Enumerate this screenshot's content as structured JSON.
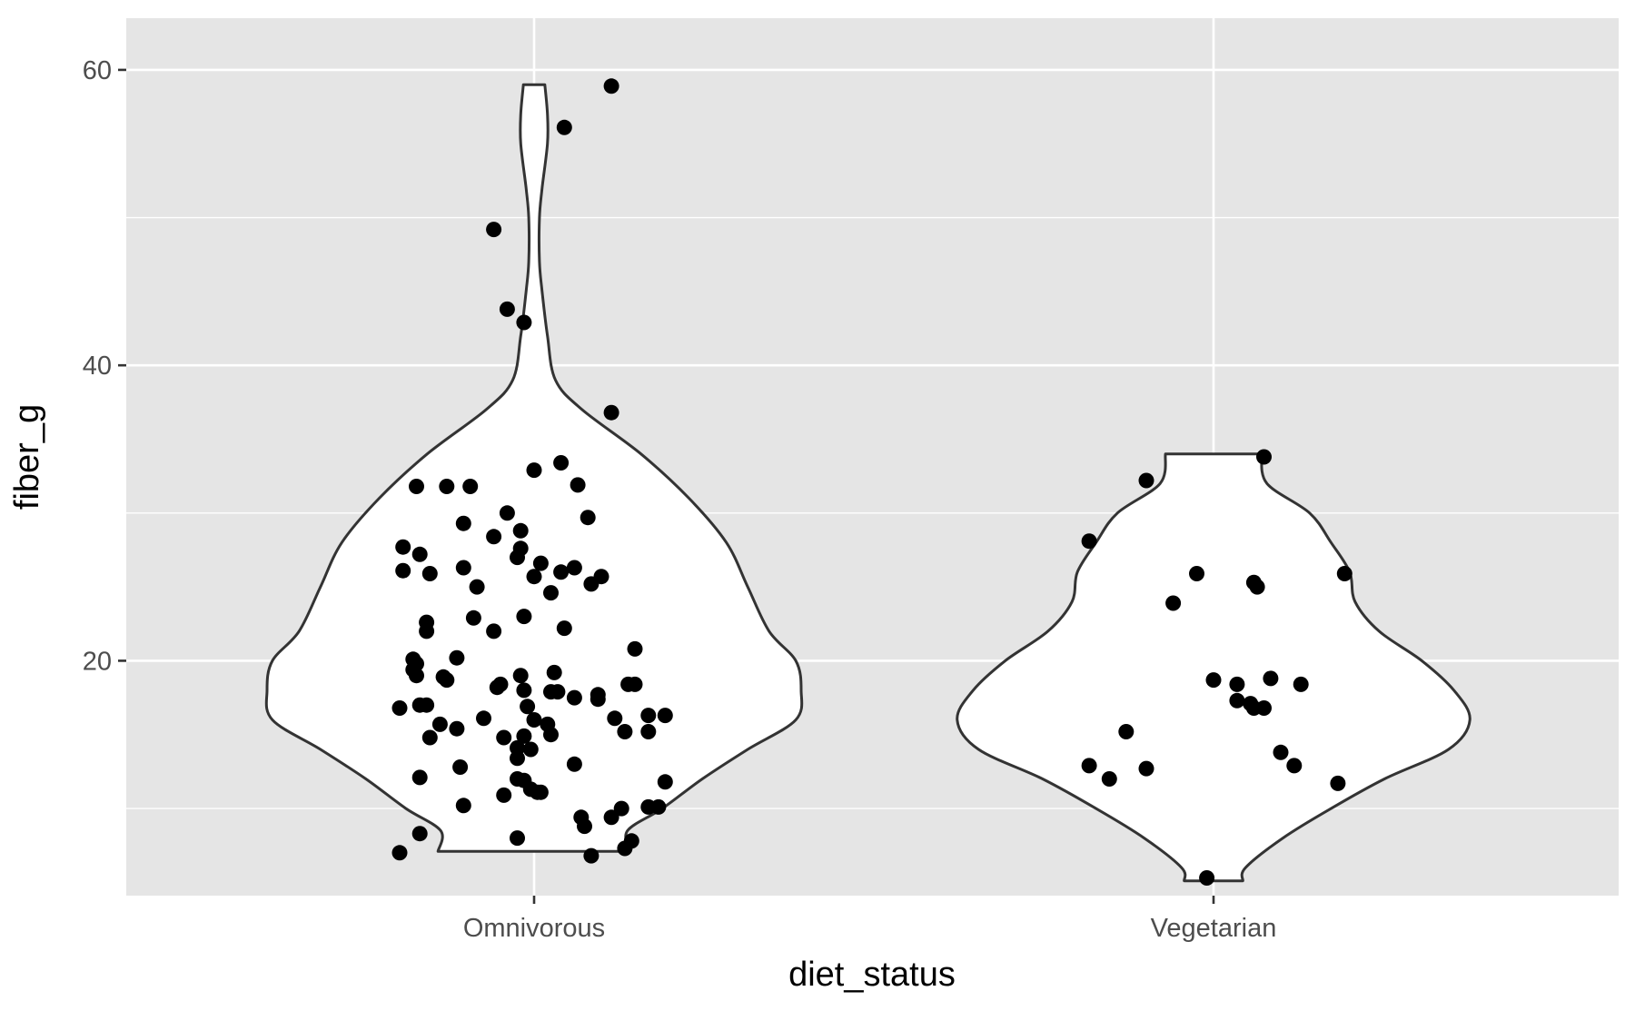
{
  "chart_data": {
    "type": "violin",
    "xlabel": "diet_status",
    "ylabel": "fiber_g",
    "categories": [
      "Omnivorous",
      "Vegetarian"
    ],
    "ylim": [
      4.1,
      63.5
    ],
    "yticks": [
      20,
      40,
      60
    ],
    "y_minor_gridlines": [
      10,
      30,
      50
    ],
    "grid": true,
    "legend": "none",
    "colors": {
      "panel_background": "#e5e5e5",
      "gridline": "#ffffff",
      "violin_fill": "#ffffff",
      "violin_outline": "#333333",
      "point": "#000000",
      "tick_label": "#4d4d4d",
      "axis_title": "#000000"
    },
    "violins": [
      {
        "category": "Omnivorous",
        "y_range": [
          7.1,
          59.0
        ],
        "density_profile": [
          [
            59.0,
            0.04
          ],
          [
            57.0,
            0.05
          ],
          [
            55.0,
            0.05
          ],
          [
            52.0,
            0.03
          ],
          [
            50.0,
            0.02
          ],
          [
            47.0,
            0.02
          ],
          [
            45.0,
            0.03
          ],
          [
            42.0,
            0.05
          ],
          [
            39.0,
            0.08
          ],
          [
            37.0,
            0.18
          ],
          [
            34.0,
            0.4
          ],
          [
            31.0,
            0.58
          ],
          [
            28.0,
            0.72
          ],
          [
            25.0,
            0.8
          ],
          [
            22.0,
            0.88
          ],
          [
            20.0,
            0.98
          ],
          [
            18.0,
            1.0
          ],
          [
            16.0,
            0.98
          ],
          [
            14.0,
            0.8
          ],
          [
            12.0,
            0.63
          ],
          [
            10.0,
            0.48
          ],
          [
            8.5,
            0.35
          ],
          [
            7.1,
            0.36
          ]
        ],
        "points": [
          [
            -0.4,
            7.0
          ],
          [
            -0.34,
            8.3
          ],
          [
            -0.34,
            12.1
          ],
          [
            -0.4,
            16.8
          ],
          [
            -0.34,
            17.0
          ],
          [
            -0.32,
            17.0
          ],
          [
            -0.31,
            14.8
          ],
          [
            -0.28,
            15.7
          ],
          [
            -0.27,
            18.9
          ],
          [
            -0.26,
            18.7
          ],
          [
            -0.35,
            19.0
          ],
          [
            -0.36,
            19.4
          ],
          [
            -0.35,
            19.8
          ],
          [
            -0.36,
            20.1
          ],
          [
            -0.32,
            22.0
          ],
          [
            -0.32,
            22.6
          ],
          [
            -0.31,
            25.9
          ],
          [
            -0.39,
            26.1
          ],
          [
            -0.34,
            27.2
          ],
          [
            -0.39,
            27.7
          ],
          [
            -0.35,
            31.8
          ],
          [
            -0.26,
            31.8
          ],
          [
            -0.19,
            31.8
          ],
          [
            -0.21,
            10.2
          ],
          [
            -0.22,
            12.8
          ],
          [
            -0.23,
            15.4
          ],
          [
            -0.23,
            20.2
          ],
          [
            -0.18,
            22.9
          ],
          [
            -0.21,
            26.3
          ],
          [
            -0.17,
            25.0
          ],
          [
            -0.21,
            29.3
          ],
          [
            -0.15,
            16.1
          ],
          [
            -0.12,
            22.0
          ],
          [
            -0.12,
            28.4
          ],
          [
            -0.11,
            18.2
          ],
          [
            -0.1,
            18.4
          ],
          [
            -0.09,
            14.8
          ],
          [
            -0.09,
            10.9
          ],
          [
            -0.08,
            30.0
          ],
          [
            -0.05,
            14.1
          ],
          [
            -0.05,
            13.4
          ],
          [
            -0.05,
            12.0
          ],
          [
            -0.05,
            8.0
          ],
          [
            -0.05,
            27.0
          ],
          [
            -0.04,
            27.6
          ],
          [
            -0.04,
            28.8
          ],
          [
            -0.04,
            19.0
          ],
          [
            -0.03,
            18.0
          ],
          [
            -0.03,
            14.9
          ],
          [
            -0.03,
            11.9
          ],
          [
            -0.03,
            23.0
          ],
          [
            -0.02,
            16.9
          ],
          [
            -0.01,
            14.0
          ],
          [
            -0.01,
            11.3
          ],
          [
            0.0,
            16.0
          ],
          [
            0.0,
            25.7
          ],
          [
            0.0,
            32.9
          ],
          [
            0.01,
            11.1
          ],
          [
            0.02,
            11.1
          ],
          [
            0.02,
            26.6
          ],
          [
            0.04,
            15.7
          ],
          [
            0.05,
            15.0
          ],
          [
            0.05,
            17.9
          ],
          [
            0.05,
            24.6
          ],
          [
            0.06,
            19.2
          ],
          [
            0.07,
            17.9
          ],
          [
            0.08,
            33.4
          ],
          [
            0.08,
            26.0
          ],
          [
            0.09,
            22.2
          ],
          [
            0.12,
            17.5
          ],
          [
            0.12,
            13.0
          ],
          [
            0.12,
            26.3
          ],
          [
            0.13,
            31.9
          ],
          [
            0.14,
            9.4
          ],
          [
            0.15,
            8.8
          ],
          [
            0.16,
            29.7
          ],
          [
            0.17,
            25.2
          ],
          [
            0.17,
            6.8
          ],
          [
            0.19,
            17.4
          ],
          [
            0.19,
            17.7
          ],
          [
            0.2,
            25.7
          ],
          [
            0.23,
            9.4
          ],
          [
            0.24,
            16.1
          ],
          [
            0.26,
            10.0
          ],
          [
            0.27,
            7.3
          ],
          [
            0.27,
            15.2
          ],
          [
            0.28,
            18.4
          ],
          [
            0.29,
            7.8
          ],
          [
            0.3,
            20.8
          ],
          [
            0.3,
            18.4
          ],
          [
            0.34,
            10.1
          ],
          [
            0.34,
            16.3
          ],
          [
            0.34,
            15.2
          ],
          [
            0.37,
            10.1
          ],
          [
            0.39,
            16.3
          ],
          [
            0.39,
            11.8
          ],
          [
            -0.12,
            49.2
          ],
          [
            -0.08,
            43.8
          ],
          [
            -0.03,
            42.9
          ],
          [
            0.09,
            56.1
          ],
          [
            0.23,
            58.9
          ],
          [
            0.23,
            36.8
          ]
        ]
      },
      {
        "category": "Vegetarian",
        "y_range": [
          5.1,
          34.0
        ],
        "density_profile": [
          [
            34.0,
            0.18
          ],
          [
            32.0,
            0.2
          ],
          [
            30.0,
            0.36
          ],
          [
            28.0,
            0.44
          ],
          [
            26.0,
            0.51
          ],
          [
            24.0,
            0.53
          ],
          [
            22.0,
            0.62
          ],
          [
            20.0,
            0.78
          ],
          [
            18.0,
            0.9
          ],
          [
            16.0,
            0.96
          ],
          [
            14.0,
            0.88
          ],
          [
            12.0,
            0.64
          ],
          [
            10.0,
            0.44
          ],
          [
            8.0,
            0.26
          ],
          [
            6.0,
            0.12
          ],
          [
            5.1,
            0.11
          ]
        ],
        "points": [
          [
            -0.37,
            28.1
          ],
          [
            -0.37,
            12.9
          ],
          [
            -0.31,
            12.0
          ],
          [
            -0.26,
            15.2
          ],
          [
            -0.2,
            32.2
          ],
          [
            -0.2,
            12.7
          ],
          [
            -0.12,
            23.9
          ],
          [
            -0.05,
            25.9
          ],
          [
            -0.02,
            5.3
          ],
          [
            0.0,
            18.7
          ],
          [
            0.07,
            18.4
          ],
          [
            0.07,
            17.3
          ],
          [
            0.11,
            17.1
          ],
          [
            0.12,
            16.8
          ],
          [
            0.12,
            25.3
          ],
          [
            0.13,
            25.0
          ],
          [
            0.15,
            16.8
          ],
          [
            0.15,
            33.8
          ],
          [
            0.17,
            18.8
          ],
          [
            0.2,
            13.8
          ],
          [
            0.24,
            12.9
          ],
          [
            0.26,
            18.4
          ],
          [
            0.37,
            11.7
          ],
          [
            0.39,
            25.9
          ]
        ]
      }
    ]
  }
}
